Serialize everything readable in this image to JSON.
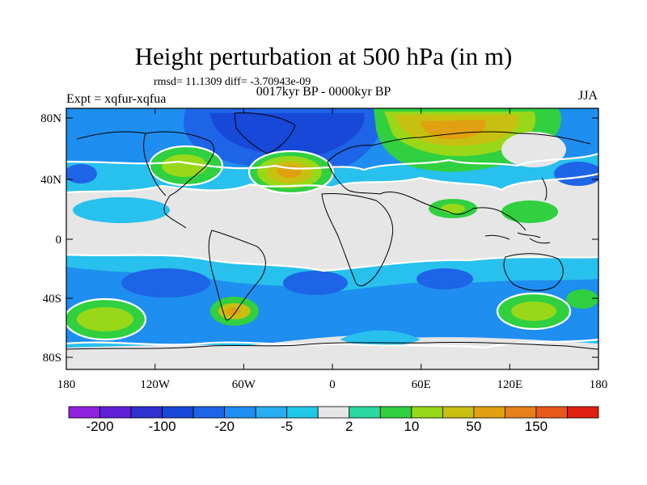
{
  "title": "Height perturbation at 500 hPa (in m)",
  "stats": "rmsd= 11.1309 diff= -3.70943e-09",
  "subtitle": "0017kyr BP - 0000kyr BP",
  "experiment": "Expt = xqfur-xqfua",
  "season": "JJA",
  "lat_ticks": [
    "80N",
    "40N",
    "0",
    "40S",
    "80S"
  ],
  "lon_ticks": [
    "180",
    "120W",
    "60W",
    "0",
    "60E",
    "120E",
    "180"
  ],
  "colorbar": {
    "labels": [
      "-200",
      "-100",
      "-20",
      "-5",
      "2",
      "10",
      "50",
      "150"
    ],
    "colors": [
      "#9020e0",
      "#6020d8",
      "#3030d0",
      "#1848d8",
      "#1e64e6",
      "#1e8ef0",
      "#28aef0",
      "#20c8e8",
      "#e6e6e6",
      "#2ad8a0",
      "#30d040",
      "#98d818",
      "#c8c010",
      "#e0a010",
      "#e88018",
      "#e85818",
      "#e02010"
    ]
  },
  "map_colors": {
    "neutral": "#e6e6e6",
    "light_blue": "#28c0ec",
    "cyan": "#20c8e8",
    "mid_blue": "#1e8ef0",
    "blue": "#1e64e6",
    "dark_blue": "#1848d8",
    "teal": "#2ad8a0",
    "green": "#30d040",
    "yellow_green": "#98d818",
    "yellow": "#c8c010",
    "orange": "#e0a010"
  }
}
